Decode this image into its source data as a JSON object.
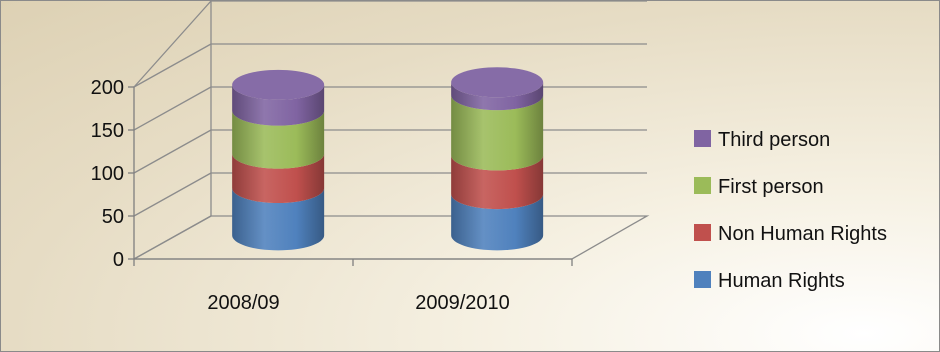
{
  "chart_data": {
    "type": "bar",
    "style": "3d-stacked-cylinder",
    "categories": [
      "2008/09",
      "2009/2010"
    ],
    "series": [
      {
        "name": "Human Rights",
        "color": "#4f81bd",
        "values": [
          55,
          48
        ]
      },
      {
        "name": "Non Human Rights",
        "color": "#c0504d",
        "values": [
          40,
          45
        ]
      },
      {
        "name": "First person",
        "color": "#9bbb59",
        "values": [
          50,
          70
        ]
      },
      {
        "name": "Third person",
        "color": "#8064a2",
        "values": [
          30,
          15
        ]
      }
    ],
    "ylim": [
      0,
      200
    ],
    "yticks": [
      0,
      50,
      100,
      150,
      200
    ],
    "grid": true,
    "legend_position": "right"
  }
}
